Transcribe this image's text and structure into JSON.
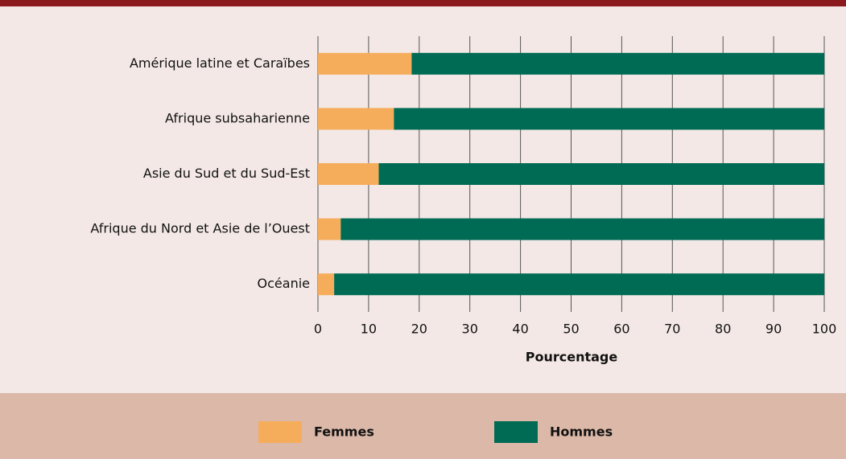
{
  "chart_data": {
    "type": "stacked-barh",
    "categories": [
      "Amérique latine et Caraïbes",
      "Afrique subsaharienne",
      "Asie du Sud et du Sud-Est",
      "Afrique du Nord et Asie de l’Ouest",
      "Océanie"
    ],
    "series": [
      {
        "name": "Femmes",
        "color": "#f5ad5b",
        "values": [
          18.5,
          15,
          12,
          4.5,
          3.2
        ]
      },
      {
        "name": "Hommes",
        "color": "#006b54",
        "values": [
          81.5,
          85,
          88,
          95.5,
          96.8
        ]
      }
    ],
    "xlabel": "Pourcentage",
    "xlim": [
      0,
      100
    ],
    "xticks": [
      0,
      10,
      20,
      30,
      40,
      50,
      60,
      70,
      80,
      90,
      100
    ],
    "grid": true,
    "legend": "bottom"
  }
}
